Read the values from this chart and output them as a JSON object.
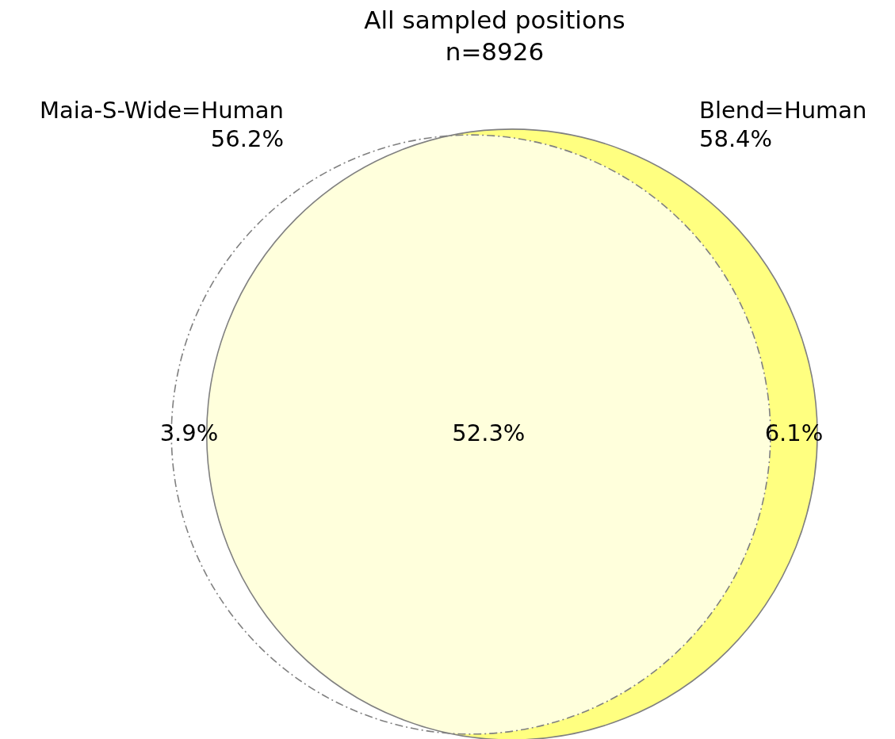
{
  "chart_data": {
    "type": "other",
    "title": "All sampled positions",
    "subtitle": "n=8926",
    "categories": [
      null,
      null,
      null
    ],
    "values": [
      3.9,
      52.3,
      6.1
    ],
    "value_labels": [
      "3.9%",
      "52.3%",
      "6.1%"
    ],
    "colors": [
      "#ffffff",
      "#ffffdc",
      "#ffff80"
    ],
    "annotations": [
      "Maia-S-Wide=Human",
      "56.2%",
      "Blend=Human",
      "58.4%"
    ]
  }
}
